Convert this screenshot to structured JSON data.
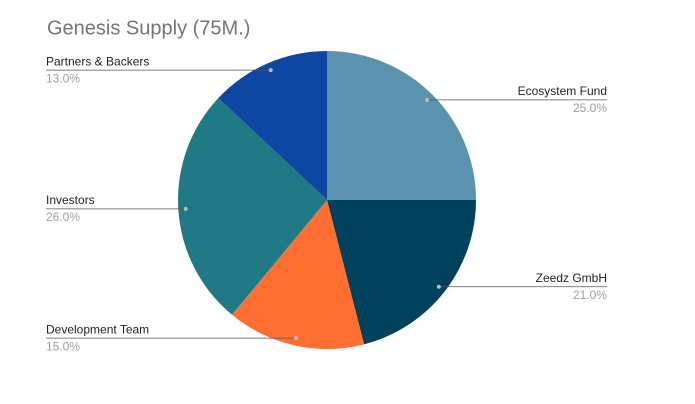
{
  "chart_data": {
    "type": "pie",
    "title": "Genesis Supply (75M.)",
    "categories": [
      "Ecosystem Fund",
      "Zeedz GmbH",
      "Development Team",
      "Investors",
      "Partners & Backers"
    ],
    "values": [
      25,
      21,
      15,
      26,
      13
    ],
    "value_labels": [
      "25.0%",
      "21.0%",
      "15.0%",
      "26.0%",
      "13.0%"
    ],
    "colors": [
      "#5b93ae",
      "#00425e",
      "#ff6f31",
      "#1f7a85",
      "#0d47a1"
    ]
  }
}
